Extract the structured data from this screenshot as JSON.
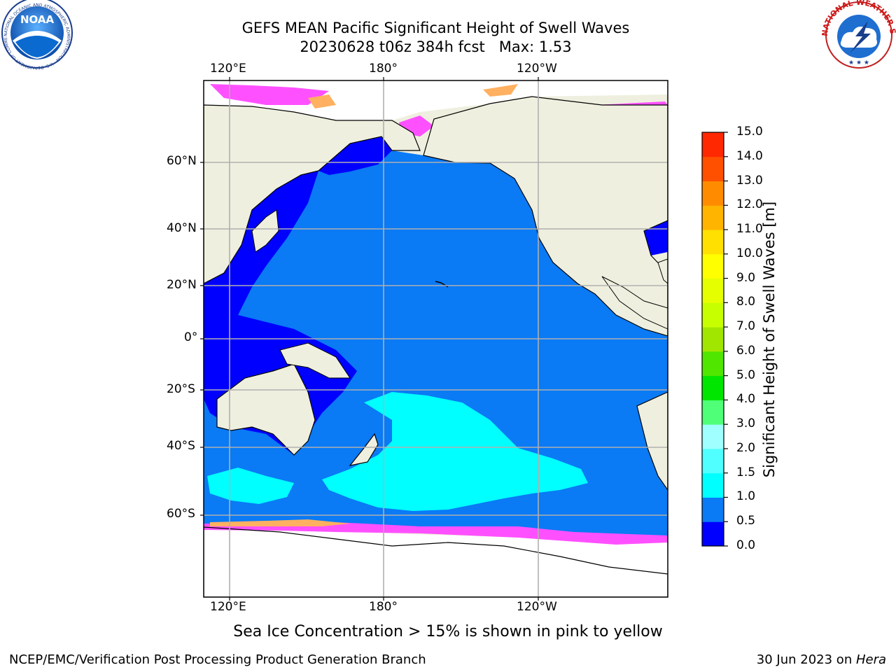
{
  "title": {
    "line1": "GEFS MEAN Pacific Significant Height of Swell Waves",
    "line2": "20230628 t06z 384h fcst   Max: 1.53"
  },
  "map": {
    "lon_labels_top": [
      "120°E",
      "180°",
      "120°W"
    ],
    "lon_labels_bottom": [
      "120°E",
      "180°",
      "120°W"
    ],
    "lat_labels": [
      "60°N",
      "40°N",
      "20°N",
      "0°",
      "20°S",
      "40°S",
      "60°S"
    ],
    "colors": {
      "land": "#efefdf",
      "ice": "#ffffff",
      "ocean_0_0_5": "#0000ff",
      "ocean_0_5_1_0": "#0a7af5",
      "ocean_1_0_1_5": "#00ffff",
      "ice_edge_pink": "#ff50ff",
      "ice_edge_orange": "#ffb060",
      "grid": "#b0b0b0"
    }
  },
  "colorbar": {
    "label": "Significant Height of Swell Waves [m]",
    "ticks": [
      "0.0",
      "0.5",
      "1.0",
      "1.5",
      "2.0",
      "3.0",
      "4.0",
      "5.0",
      "6.0",
      "7.0",
      "8.0",
      "9.0",
      "10.0",
      "11.0",
      "12.0",
      "13.0",
      "14.0",
      "15.0"
    ],
    "colors": [
      "#0000ff",
      "#0a7af5",
      "#00ffff",
      "#50ffff",
      "#a0ffff",
      "#50ff78",
      "#00e600",
      "#50e600",
      "#a0e600",
      "#c8ff00",
      "#e6ff00",
      "#ffff00",
      "#ffe000",
      "#ffb400",
      "#ff8c00",
      "#ff5000",
      "#ff2800",
      "#ff0000"
    ]
  },
  "logos": {
    "noaa_text": "NOAA",
    "noaa_ring": "NATIONAL OCEANIC AND ATMOSPHERIC ADMINISTRATION · U.S. DEPARTMENT OF COMMERCE",
    "nws_ring": "NATIONAL WEATHER SERVICE"
  },
  "caption": "Sea Ice Concentration > 15% is shown in pink to yellow",
  "footer": {
    "left": "NCEP/EMC/Verification Post Processing Product Generation Branch",
    "right_date": "30 Jun 2023 on ",
    "right_host": "Hera"
  }
}
